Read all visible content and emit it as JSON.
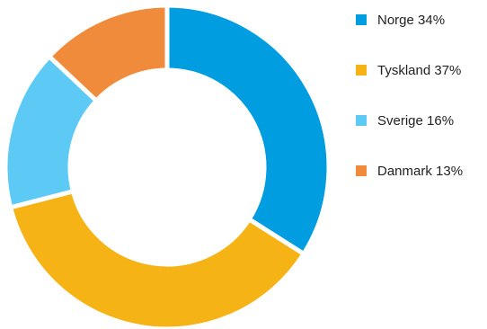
{
  "chart_data": {
    "type": "pie",
    "variant": "donut",
    "categories": [
      "Norge",
      "Tyskland",
      "Sverige",
      "Danmark"
    ],
    "values": [
      34,
      37,
      16,
      13
    ],
    "unit": "%",
    "colors": [
      "#009ee0",
      "#f5b316",
      "#5ccaf5",
      "#f08b3c"
    ],
    "legend_position": "right",
    "legend": [
      {
        "label": "Norge 34%"
      },
      {
        "label": "Tyskland 37%"
      },
      {
        "label": "Sverige 16%"
      },
      {
        "label": "Danmark 13%"
      }
    ]
  }
}
